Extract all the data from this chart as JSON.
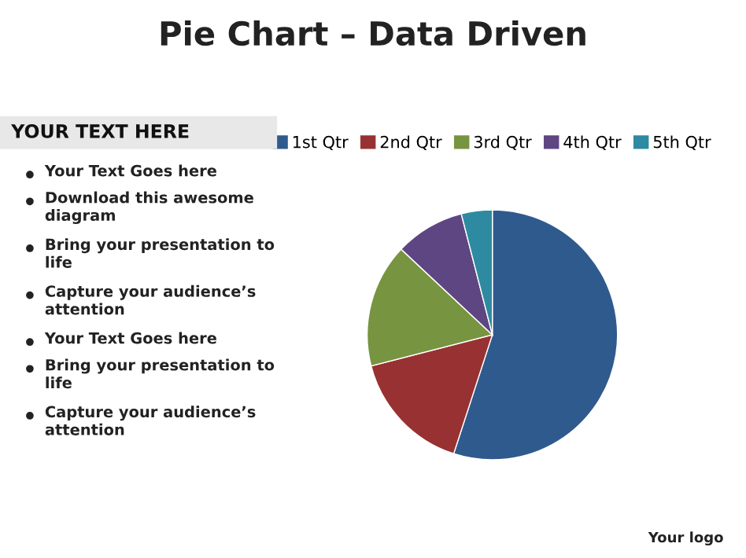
{
  "chart_data": {
    "type": "pie",
    "title": "Pie Chart – Data Driven",
    "categories": [
      "1st Qtr",
      "2nd Qtr",
      "3rd Qtr",
      "4th Qtr",
      "5th Qtr"
    ],
    "values": [
      55,
      16,
      16,
      9,
      4
    ],
    "colors": [
      "#2f5a8e",
      "#983232",
      "#779440",
      "#5e4682",
      "#2e8aa0"
    ],
    "legend": "top",
    "annotations": [
      "YOUR TEXT HERE",
      "Your Text Goes here",
      "Download this awesome diagram",
      "Bring your presentation to life",
      "Capture your audience’s attention",
      "Your Text Goes here",
      "Bring your presentation to life",
      "Capture your audience’s attention",
      "Your logo"
    ]
  }
}
